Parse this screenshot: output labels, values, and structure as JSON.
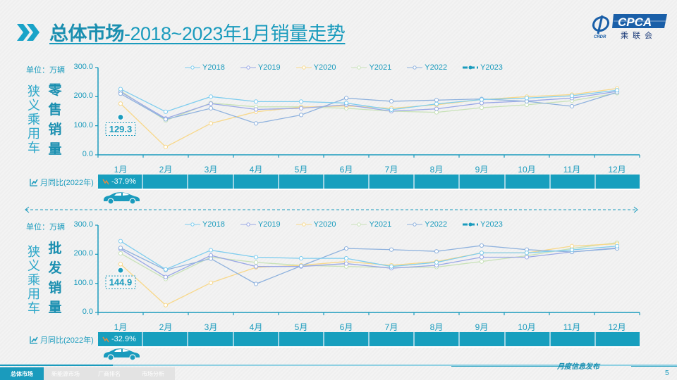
{
  "header": {
    "title_bold": "总体市场",
    "title_rest": "-2018~2023年1月销量走势",
    "logo": {
      "brand": "CPCA",
      "sub": "乘联会",
      "mark": "CRDR"
    }
  },
  "colors": {
    "accent": "#1a9bbd",
    "Y2018": "#7fcdef",
    "Y2019": "#9aa8e6",
    "Y2020": "#f8d88a",
    "Y2021": "#c8e2b8",
    "Y2022": "#8fb2de",
    "Y2023": "#1a9bbd",
    "yoy_bar": "#179fbe",
    "down_arrow": "#f08a3a"
  },
  "retail": {
    "unit": "单位：万辆",
    "category_label": "狭义乘用车",
    "metric_label": "零售销量",
    "yoy_label": "月同比(2022年)",
    "yoy_values": [
      "-37.9%",
      "",
      "",
      "",
      "",
      "",
      "",
      "",
      "",
      "",
      "",
      ""
    ],
    "data_label": "129.3"
  },
  "wholesale": {
    "unit": "单位：万辆",
    "category_label": "狭义乘用车",
    "metric_label": "批发销量",
    "yoy_label": "月同比(2022年)",
    "yoy_values": [
      "-32.9%",
      "",
      "",
      "",
      "",
      "",
      "",
      "",
      "",
      "",
      "",
      ""
    ],
    "data_label": "144.9"
  },
  "footer": {
    "tabs": [
      "总体市场",
      "新能源市场",
      "厂商排名",
      "市场分析"
    ],
    "active_tab": 0,
    "publication": "月度信息发布",
    "page_number": "5"
  },
  "chart_data": [
    {
      "type": "line",
      "title": "零售销量",
      "ylabel": "万辆",
      "ylim": [
        0,
        300
      ],
      "yticks": [
        "0.0",
        "100.0",
        "200.0",
        "300.0"
      ],
      "categories": [
        "1月",
        "2月",
        "3月",
        "4月",
        "5月",
        "6月",
        "7月",
        "8月",
        "9月",
        "10月",
        "11月",
        "12月"
      ],
      "legend_position": "top",
      "series": [
        {
          "name": "Y2018",
          "values": [
            226,
            148,
            200,
            183,
            183,
            178,
            155,
            175,
            190,
            195,
            203,
            222
          ]
        },
        {
          "name": "Y2019",
          "values": [
            216,
            125,
            176,
            156,
            160,
            172,
            150,
            158,
            178,
            185,
            195,
            218
          ]
        },
        {
          "name": "Y2020",
          "values": [
            176,
            27,
            108,
            148,
            164,
            168,
            160,
            172,
            190,
            200,
            207,
            228
          ]
        },
        {
          "name": "Y2021",
          "values": [
            220,
            118,
            178,
            165,
            165,
            160,
            150,
            146,
            162,
            172,
            186,
            212
          ]
        },
        {
          "name": "Y2022",
          "values": [
            210,
            122,
            160,
            108,
            137,
            195,
            184,
            188,
            192,
            184,
            167,
            215
          ]
        },
        {
          "name": "Y2023",
          "values": [
            129.3,
            null,
            null,
            null,
            null,
            null,
            null,
            null,
            null,
            null,
            null,
            null
          ]
        }
      ],
      "annotations": [
        "129.3"
      ]
    },
    {
      "type": "line",
      "title": "批发销量",
      "ylabel": "万辆",
      "ylim": [
        0,
        300
      ],
      "yticks": [
        "0.0",
        "100.0",
        "200.0",
        "300.0"
      ],
      "categories": [
        "1月",
        "2月",
        "3月",
        "4月",
        "5月",
        "6月",
        "7月",
        "8月",
        "9月",
        "10月",
        "11月",
        "12月"
      ],
      "legend_position": "top",
      "series": [
        {
          "name": "Y2018",
          "values": [
            245,
            148,
            214,
            190,
            186,
            186,
            158,
            172,
            205,
            205,
            215,
            228
          ]
        },
        {
          "name": "Y2019",
          "values": [
            218,
            122,
            196,
            158,
            158,
            168,
            152,
            162,
            190,
            190,
            208,
            222
          ]
        },
        {
          "name": "Y2020",
          "values": [
            166,
            25,
            102,
            155,
            162,
            175,
            162,
            175,
            205,
            205,
            228,
            236
          ]
        },
        {
          "name": "Y2021",
          "values": [
            203,
            115,
            190,
            172,
            162,
            158,
            154,
            156,
            175,
            195,
            220,
            240
          ]
        },
        {
          "name": "Y2022",
          "values": [
            222,
            146,
            185,
            98,
            160,
            220,
            216,
            210,
            230,
            216,
            208,
            220
          ]
        },
        {
          "name": "Y2023",
          "values": [
            144.9,
            null,
            null,
            null,
            null,
            null,
            null,
            null,
            null,
            null,
            null,
            null
          ]
        }
      ],
      "annotations": [
        "144.9"
      ]
    }
  ]
}
